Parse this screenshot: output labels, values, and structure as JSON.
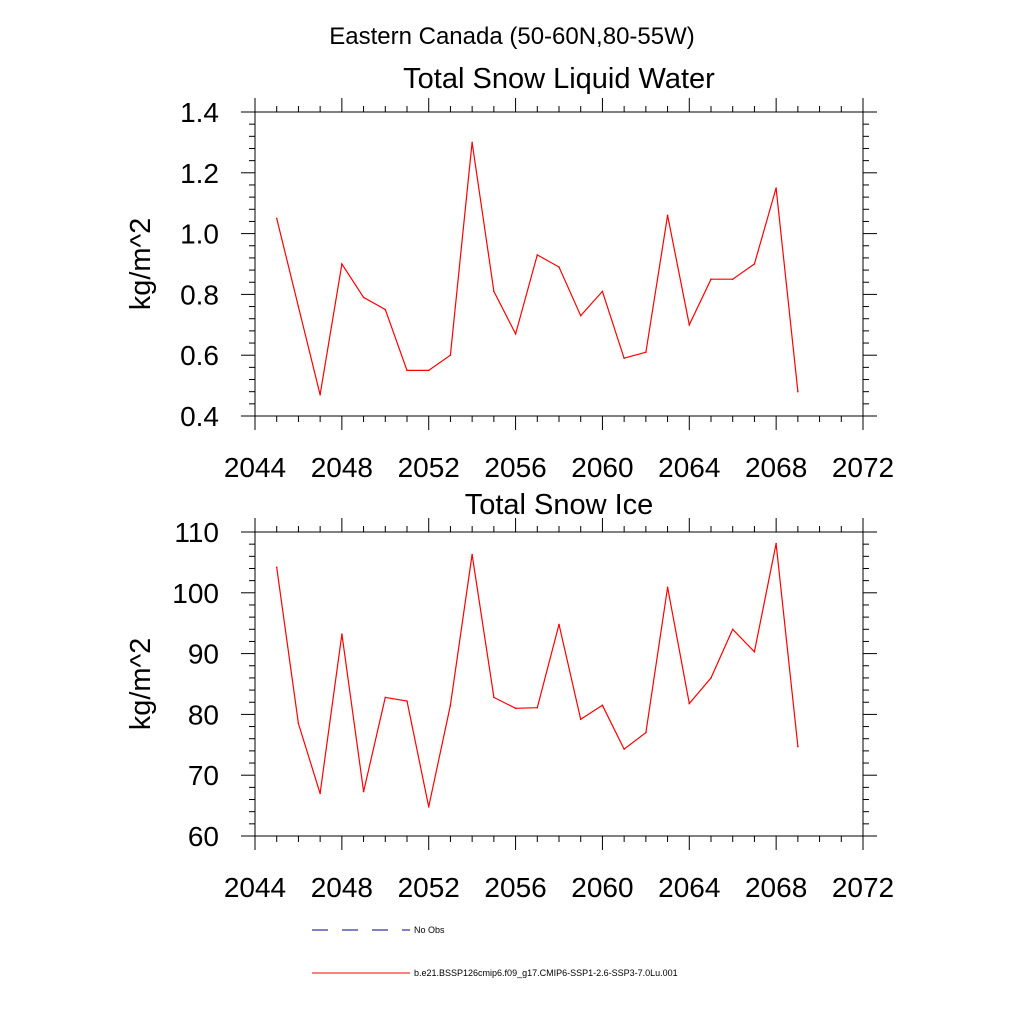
{
  "figure": {
    "title": "Eastern Canada (50-60N,80-55W)"
  },
  "chart_data": [
    {
      "type": "line",
      "title": "Total Snow Liquid Water",
      "xlabel": "",
      "ylabel": "kg/m^2",
      "xlim": [
        2044,
        2072
      ],
      "ylim": [
        0.4,
        1.4
      ],
      "xticks": [
        2044,
        2048,
        2052,
        2056,
        2060,
        2064,
        2068,
        2072
      ],
      "xtick_labels": [
        "2044",
        "2048",
        "2052",
        "2056",
        "2060",
        "2064",
        "2068",
        "2072"
      ],
      "yticks": [
        0.4,
        0.6,
        0.8,
        1.0,
        1.2,
        1.4
      ],
      "ytick_labels": [
        "0.4",
        "0.6",
        "0.8",
        "1.0",
        "1.2",
        "1.4"
      ],
      "grid": false,
      "series": [
        {
          "name": "b.e21.BSSP126cmip6.f09_g17.CMIP6-SSP1-2.6-SSP3-7.0Lu.001",
          "color": "#ff0000",
          "x": [
            2045,
            2046,
            2047,
            2048,
            2049,
            2050,
            2051,
            2052,
            2053,
            2054,
            2055,
            2056,
            2057,
            2058,
            2059,
            2060,
            2061,
            2062,
            2063,
            2064,
            2065,
            2066,
            2067,
            2068,
            2069
          ],
          "y": [
            1.05,
            0.76,
            0.47,
            0.9,
            0.79,
            0.75,
            0.55,
            0.55,
            0.6,
            1.3,
            0.81,
            0.67,
            0.93,
            0.89,
            0.73,
            0.81,
            0.59,
            0.61,
            1.06,
            0.7,
            0.85,
            0.85,
            0.9,
            1.15,
            0.48
          ]
        }
      ]
    },
    {
      "type": "line",
      "title": "Total Snow Ice",
      "xlabel": "",
      "ylabel": "kg/m^2",
      "xlim": [
        2044,
        2072
      ],
      "ylim": [
        60,
        110
      ],
      "xticks": [
        2044,
        2048,
        2052,
        2056,
        2060,
        2064,
        2068,
        2072
      ],
      "xtick_labels": [
        "2044",
        "2048",
        "2052",
        "2056",
        "2060",
        "2064",
        "2068",
        "2072"
      ],
      "yticks": [
        60,
        70,
        80,
        90,
        100,
        110
      ],
      "ytick_labels": [
        "60",
        "70",
        "80",
        "90",
        "100",
        "110"
      ],
      "grid": false,
      "series": [
        {
          "name": "b.e21.BSSP126cmip6.f09_g17.CMIP6-SSP1-2.6-SSP3-7.0Lu.001",
          "color": "#ff0000",
          "x": [
            2045,
            2046,
            2047,
            2048,
            2049,
            2050,
            2051,
            2052,
            2053,
            2054,
            2055,
            2056,
            2057,
            2058,
            2059,
            2060,
            2061,
            2062,
            2063,
            2064,
            2065,
            2066,
            2067,
            2068,
            2069
          ],
          "y": [
            104.2,
            78.5,
            67.0,
            93.2,
            67.3,
            82.8,
            82.2,
            64.8,
            81.5,
            106.3,
            82.8,
            81.0,
            81.1,
            94.8,
            79.2,
            81.5,
            74.3,
            77.0,
            100.9,
            81.8,
            86.0,
            94.0,
            90.3,
            108.1,
            74.7
          ]
        }
      ]
    }
  ],
  "legend": {
    "placement": "bottom-left",
    "entries": [
      {
        "label": "No Obs",
        "color": "#00008b",
        "style": "dashed"
      },
      {
        "label": "b.e21.BSSP126cmip6.f09_g17.CMIP6-SSP1-2.6-SSP3-7.0Lu.001",
        "color": "#ff0000",
        "style": "solid"
      }
    ]
  }
}
